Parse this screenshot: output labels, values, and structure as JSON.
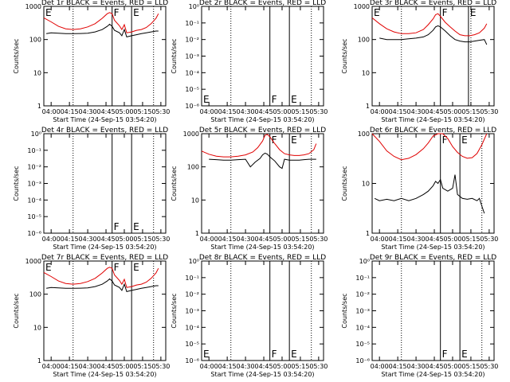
{
  "figure": {
    "xlabel": "Start Time (24-Sep-15 03:54:20)",
    "ylabel": "Counts/sec",
    "x_ticks": [
      "04:00",
      "04:15",
      "04:30",
      "04:45",
      "05:00",
      "05:15",
      "05:30"
    ],
    "series_colors": {
      "events": "#000000",
      "lld": "#e00000"
    }
  },
  "chart_data": [
    {
      "type": "line",
      "title": "Det 1r BLACK = Events, RED = LLD",
      "empty": false,
      "yscale": "log",
      "ylim": [
        1,
        1000
      ],
      "y_ticks": [
        "1",
        "10",
        "100",
        "1000"
      ],
      "markers": [
        {
          "label": "E",
          "x": "03:54",
          "style": "solid"
        },
        {
          "label": "",
          "x": "04:18",
          "style": "dotted"
        },
        {
          "label": "F",
          "x": "04:50",
          "style": "solid"
        },
        {
          "label": "E",
          "x": "05:06",
          "style": "solid"
        },
        {
          "label": "",
          "x": "05:24",
          "style": "dotted"
        }
      ],
      "series": [
        {
          "name": "LLD",
          "color": "red",
          "x": [
            "03:54",
            "04:00",
            "04:06",
            "04:12",
            "04:18",
            "04:24",
            "04:30",
            "04:36",
            "04:42",
            "04:46",
            "04:48",
            "04:50",
            "04:52",
            "04:56",
            "04:58",
            "05:00",
            "05:02",
            "05:06",
            "05:10",
            "05:14",
            "05:18",
            "05:22",
            "05:26",
            "05:28"
          ],
          "y": [
            450,
            340,
            250,
            210,
            200,
            210,
            240,
            300,
            440,
            600,
            650,
            600,
            380,
            260,
            200,
            280,
            160,
            170,
            190,
            200,
            230,
            300,
            440,
            600
          ]
        },
        {
          "name": "Events",
          "color": "black",
          "x": [
            "03:56",
            "04:00",
            "04:06",
            "04:12",
            "04:18",
            "04:24",
            "04:30",
            "04:36",
            "04:42",
            "04:46",
            "04:48",
            "04:50",
            "04:52",
            "04:56",
            "04:58",
            "05:00",
            "05:02",
            "05:06",
            "05:10",
            "05:14",
            "05:18",
            "05:22",
            "05:26",
            "05:28"
          ],
          "y": [
            150,
            160,
            155,
            150,
            150,
            152,
            155,
            170,
            200,
            250,
            290,
            250,
            190,
            160,
            130,
            200,
            120,
            130,
            140,
            150,
            160,
            170,
            180,
            180
          ]
        }
      ]
    },
    {
      "type": "line",
      "title": "Det 2r BLACK = Events, RED = LLD",
      "empty": true,
      "yscale": "log",
      "ylim": [
        1e-06,
        0.1
      ],
      "y_ticks": [
        "10⁻⁶",
        "10⁻⁵",
        "10⁻⁴",
        "10⁻³",
        "10⁻²",
        "10⁻¹",
        "10⁰"
      ],
      "markers": [
        {
          "label": "E",
          "x": "03:54",
          "style": "solid"
        },
        {
          "label": "",
          "x": "04:18",
          "style": "dotted"
        },
        {
          "label": "F",
          "x": "04:50",
          "style": "solid"
        },
        {
          "label": "E",
          "x": "05:06",
          "style": "solid"
        },
        {
          "label": "",
          "x": "05:24",
          "style": "dotted"
        }
      ],
      "series": []
    },
    {
      "type": "line",
      "title": "Det 3r BLACK = Events, RED = LLD",
      "empty": false,
      "yscale": "log",
      "ylim": [
        1,
        1000
      ],
      "y_ticks": [
        "1",
        "10",
        "100",
        "1000"
      ],
      "markers": [
        {
          "label": "E",
          "x": "03:54",
          "style": "solid"
        },
        {
          "label": "",
          "x": "04:18",
          "style": "dotted"
        },
        {
          "label": "F",
          "x": "04:50",
          "style": "solid"
        },
        {
          "label": "E",
          "x": "05:13",
          "style": "solid"
        },
        {
          "label": "",
          "x": "05:15",
          "style": "dotted"
        }
      ],
      "series": [
        {
          "name": "LLD",
          "color": "red",
          "x": [
            "03:54",
            "04:00",
            "04:06",
            "04:12",
            "04:18",
            "04:24",
            "04:30",
            "04:36",
            "04:40",
            "04:44",
            "04:46",
            "04:48",
            "04:50",
            "04:54",
            "04:58",
            "05:02",
            "05:06",
            "05:10",
            "05:14",
            "05:18",
            "05:22",
            "05:26",
            "05:28"
          ],
          "y": [
            450,
            300,
            210,
            170,
            150,
            150,
            160,
            200,
            280,
            420,
            560,
            600,
            500,
            330,
            240,
            180,
            140,
            130,
            130,
            140,
            160,
            220,
            300
          ]
        },
        {
          "name": "Events",
          "color": "black",
          "x": [
            "04:00",
            "04:06",
            "04:12",
            "04:18",
            "04:24",
            "04:30",
            "04:36",
            "04:40",
            "04:44",
            "04:46",
            "04:48",
            "04:50",
            "04:54",
            "04:58",
            "05:02",
            "05:06",
            "05:10",
            "05:14",
            "05:18",
            "05:22",
            "05:26",
            "05:28"
          ],
          "y": [
            110,
            100,
            100,
            100,
            105,
            110,
            120,
            140,
            190,
            240,
            260,
            240,
            180,
            130,
            100,
            90,
            85,
            85,
            90,
            95,
            100,
            70
          ]
        }
      ]
    },
    {
      "type": "line",
      "title": "Det 4r BLACK = Events, RED = LLD",
      "empty": true,
      "yscale": "log",
      "ylim": [
        1e-06,
        0.1
      ],
      "y_ticks": [
        "10⁻⁶",
        "10⁻⁵",
        "10⁻⁴",
        "10⁻³",
        "10⁻²",
        "10⁻¹",
        "10⁰"
      ],
      "markers": [
        {
          "label": "",
          "x": "04:18",
          "style": "dotted"
        },
        {
          "label": "F",
          "x": "04:50",
          "style": "solid"
        },
        {
          "label": "E",
          "x": "05:06",
          "style": "solid"
        },
        {
          "label": "",
          "x": "05:24",
          "style": "dotted"
        }
      ],
      "series": []
    },
    {
      "type": "line",
      "title": "Det 5r BLACK = Events, RED = LLD",
      "empty": false,
      "yscale": "log",
      "ylim": [
        1,
        1000
      ],
      "y_ticks": [
        "1",
        "10",
        "100",
        "1000"
      ],
      "markers": [
        {
          "label": "",
          "x": "04:18",
          "style": "dotted"
        },
        {
          "label": "F",
          "x": "04:50",
          "style": "solid"
        },
        {
          "label": "E",
          "x": "05:06",
          "style": "solid"
        },
        {
          "label": "",
          "x": "05:24",
          "style": "dotted"
        }
      ],
      "series": [
        {
          "name": "LLD",
          "color": "red",
          "x": [
            "03:54",
            "04:00",
            "04:06",
            "04:12",
            "04:18",
            "04:24",
            "04:30",
            "04:36",
            "04:40",
            "04:44",
            "04:46",
            "04:48",
            "04:50",
            "04:54",
            "04:58",
            "05:02",
            "05:06",
            "05:10",
            "05:14",
            "05:18",
            "05:22",
            "05:26",
            "05:28"
          ],
          "y": [
            300,
            240,
            210,
            200,
            200,
            210,
            230,
            280,
            380,
            600,
            900,
            950,
            800,
            500,
            330,
            250,
            230,
            220,
            220,
            230,
            250,
            330,
            500
          ]
        },
        {
          "name": "Events",
          "color": "black",
          "x": [
            "04:00",
            "04:06",
            "04:12",
            "04:18",
            "04:24",
            "04:30",
            "04:34",
            "04:38",
            "04:42",
            "04:44",
            "04:46",
            "04:48",
            "04:50",
            "04:54",
            "04:58",
            "05:00",
            "05:02",
            "05:06",
            "05:10",
            "05:14",
            "05:18",
            "05:22",
            "05:26",
            "05:28"
          ],
          "y": [
            170,
            165,
            160,
            160,
            165,
            170,
            100,
            140,
            180,
            230,
            260,
            240,
            200,
            150,
            100,
            90,
            170,
            160,
            160,
            160,
            165,
            170,
            170,
            170
          ]
        }
      ]
    },
    {
      "type": "line",
      "title": "Det 6r BLACK = Events, RED = LLD",
      "empty": false,
      "yscale": "log",
      "ylim": [
        1,
        100
      ],
      "y_ticks": [
        "1",
        "10",
        "100"
      ],
      "markers": [
        {
          "label": "",
          "x": "04:18",
          "style": "dotted"
        },
        {
          "label": "F",
          "x": "04:50",
          "style": "solid"
        },
        {
          "label": "E",
          "x": "05:06",
          "style": "solid"
        },
        {
          "label": "",
          "x": "05:24",
          "style": "dotted"
        }
      ],
      "series": [
        {
          "name": "LLD",
          "color": "red",
          "x": [
            "03:54",
            "04:00",
            "04:06",
            "04:12",
            "04:18",
            "04:24",
            "04:30",
            "04:36",
            "04:40",
            "04:44",
            "04:48",
            "04:50",
            "04:52",
            "04:56",
            "05:00",
            "05:04",
            "05:08",
            "05:12",
            "05:16",
            "05:20",
            "05:24",
            "05:28"
          ],
          "y": [
            100,
            70,
            45,
            35,
            30,
            32,
            38,
            50,
            65,
            90,
            100,
            100,
            100,
            80,
            55,
            42,
            35,
            32,
            33,
            40,
            60,
            100
          ]
        },
        {
          "name": "Events",
          "color": "black",
          "x": [
            "03:56",
            "04:00",
            "04:06",
            "04:12",
            "04:18",
            "04:24",
            "04:30",
            "04:36",
            "04:40",
            "04:44",
            "04:46",
            "04:48",
            "04:50",
            "04:52",
            "04:56",
            "05:00",
            "05:02",
            "05:04",
            "05:08",
            "05:12",
            "05:16",
            "05:20",
            "05:22",
            "05:24",
            "05:26"
          ],
          "y": [
            5,
            4.5,
            4.8,
            4.5,
            5,
            4.5,
            5,
            6,
            7,
            9,
            11,
            10,
            12,
            8,
            7,
            8,
            15,
            6,
            5,
            4.8,
            5,
            4.5,
            5,
            3.5,
            2.5
          ]
        }
      ]
    },
    {
      "type": "line",
      "title": "Det 7r BLACK = Events, RED = LLD",
      "empty": false,
      "yscale": "log",
      "ylim": [
        1,
        1000
      ],
      "y_ticks": [
        "1",
        "10",
        "100",
        "1000"
      ],
      "markers": [
        {
          "label": "E",
          "x": "03:54",
          "style": "solid"
        },
        {
          "label": "",
          "x": "04:18",
          "style": "dotted"
        },
        {
          "label": "F",
          "x": "04:50",
          "style": "solid"
        },
        {
          "label": "E",
          "x": "05:06",
          "style": "solid"
        },
        {
          "label": "",
          "x": "05:24",
          "style": "dotted"
        }
      ],
      "series": [
        {
          "name": "LLD",
          "color": "red",
          "x": [
            "03:54",
            "04:00",
            "04:06",
            "04:12",
            "04:18",
            "04:24",
            "04:30",
            "04:36",
            "04:42",
            "04:46",
            "04:48",
            "04:50",
            "04:52",
            "04:56",
            "04:58",
            "05:00",
            "05:02",
            "05:06",
            "05:10",
            "05:14",
            "05:18",
            "05:22",
            "05:26",
            "05:28"
          ],
          "y": [
            450,
            340,
            250,
            210,
            200,
            210,
            240,
            300,
            440,
            600,
            650,
            600,
            380,
            260,
            200,
            280,
            160,
            170,
            190,
            200,
            230,
            300,
            440,
            600
          ]
        },
        {
          "name": "Events",
          "color": "black",
          "x": [
            "03:56",
            "04:00",
            "04:06",
            "04:12",
            "04:18",
            "04:24",
            "04:30",
            "04:36",
            "04:42",
            "04:46",
            "04:48",
            "04:50",
            "04:52",
            "04:56",
            "04:58",
            "05:00",
            "05:02",
            "05:06",
            "05:10",
            "05:14",
            "05:18",
            "05:22",
            "05:26",
            "05:28"
          ],
          "y": [
            150,
            160,
            155,
            150,
            150,
            152,
            155,
            170,
            200,
            250,
            290,
            250,
            190,
            160,
            130,
            200,
            120,
            130,
            140,
            150,
            160,
            170,
            180,
            180
          ]
        }
      ]
    },
    {
      "type": "line",
      "title": "Det 8r BLACK = Events, RED = LLD",
      "empty": true,
      "yscale": "log",
      "ylim": [
        1e-06,
        0.1
      ],
      "y_ticks": [
        "10⁻⁶",
        "10⁻⁵",
        "10⁻⁴",
        "10⁻³",
        "10⁻²",
        "10⁻¹",
        "10⁰"
      ],
      "markers": [
        {
          "label": "E",
          "x": "03:54",
          "style": "solid"
        },
        {
          "label": "",
          "x": "04:18",
          "style": "dotted"
        },
        {
          "label": "F",
          "x": "04:50",
          "style": "solid"
        },
        {
          "label": "E",
          "x": "05:06",
          "style": "solid"
        },
        {
          "label": "",
          "x": "05:24",
          "style": "dotted"
        }
      ],
      "series": []
    },
    {
      "type": "line",
      "title": "Det 9r BLACK = Events, RED = LLD",
      "empty": true,
      "yscale": "log",
      "ylim": [
        1e-06,
        0.1
      ],
      "y_ticks": [
        "10⁻⁶",
        "10⁻⁵",
        "10⁻⁴",
        "10⁻³",
        "10⁻²",
        "10⁻¹",
        "10⁰"
      ],
      "markers": [
        {
          "label": "",
          "x": "04:18",
          "style": "dotted"
        },
        {
          "label": "F",
          "x": "04:50",
          "style": "solid"
        },
        {
          "label": "E",
          "x": "05:06",
          "style": "solid"
        },
        {
          "label": "",
          "x": "05:24",
          "style": "dotted"
        }
      ],
      "series": []
    }
  ]
}
